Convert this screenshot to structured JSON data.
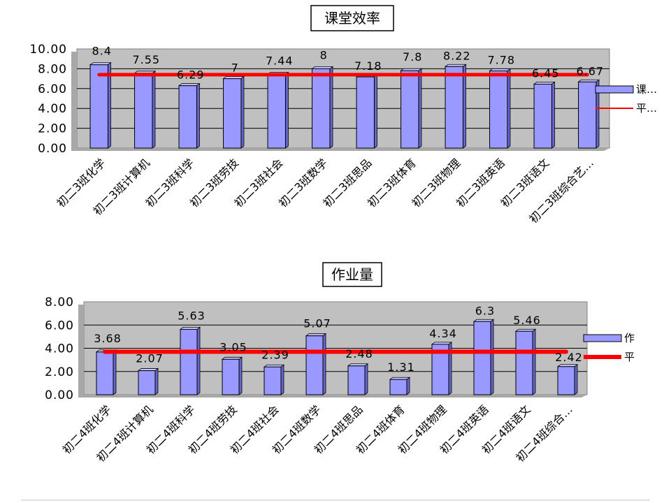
{
  "colors": {
    "bar": "#9999ff",
    "avg_line": "#ff0000",
    "plot_bg": "#c0c0c0"
  },
  "chart_data": [
    {
      "type": "bar",
      "title": "课堂效率",
      "categories": [
        "初二3班化学",
        "初二3班计算机",
        "初二3班科学",
        "初二3班劳技",
        "初二3班社会",
        "初二3班数学",
        "初二3班思品",
        "初二3班体育",
        "初二3班物理",
        "初二3班英语",
        "初二3班语文",
        "初二3班综合艺…"
      ],
      "series": [
        {
          "name": "课…",
          "kind": "bar",
          "values": [
            8.4,
            7.55,
            6.29,
            7,
            7.44,
            8,
            7.18,
            7.8,
            8.22,
            7.78,
            6.45,
            6.67
          ],
          "data_labels": [
            "8.4",
            "7.55",
            "6.29",
            "7",
            "7.44",
            "8",
            "7.18",
            "7.8",
            "8.22",
            "7.78",
            "6.45",
            "6.67"
          ]
        },
        {
          "name": "平…",
          "kind": "line",
          "values": [
            7.4,
            7.4,
            7.4,
            7.4,
            7.4,
            7.4,
            7.4,
            7.4,
            7.4,
            7.4,
            7.4,
            7.4
          ]
        }
      ],
      "ylim": [
        0,
        10
      ],
      "y_ticks": [
        "0.00",
        "2.00",
        "4.00",
        "6.00",
        "8.00",
        "10.00"
      ],
      "grid": true,
      "legend": "right"
    },
    {
      "type": "bar",
      "title": "作业量",
      "categories": [
        "初二4班化学",
        "初二4班计算机",
        "初二4班科学",
        "初二4班劳技",
        "初二4班社会",
        "初二4班数学",
        "初二4班思品",
        "初二4班体育",
        "初二4班物理",
        "初二4班英语",
        "初二4班语文",
        "初二4班综合…"
      ],
      "series": [
        {
          "name": "作",
          "kind": "bar",
          "values": [
            3.68,
            2.07,
            5.63,
            3.05,
            2.39,
            5.07,
            2.48,
            1.31,
            4.34,
            6.3,
            5.46,
            2.42
          ],
          "data_labels": [
            "3.68",
            "2.07",
            "5.63",
            "3.05",
            "2.39",
            "5.07",
            "2.48",
            "1.31",
            "4.34",
            "6.3",
            "5.46",
            "2.42"
          ]
        },
        {
          "name": "平",
          "kind": "line",
          "values": [
            3.7,
            3.7,
            3.7,
            3.7,
            3.7,
            3.7,
            3.7,
            3.7,
            3.7,
            3.7,
            3.7,
            3.7
          ]
        }
      ],
      "ylim": [
        0,
        8
      ],
      "y_ticks": [
        "0.00",
        "2.00",
        "4.00",
        "6.00",
        "8.00"
      ],
      "grid": true,
      "legend": "right"
    }
  ]
}
